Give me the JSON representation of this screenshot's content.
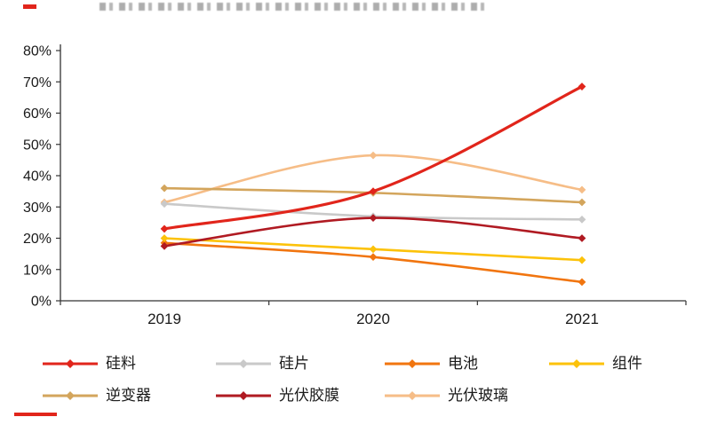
{
  "chart_data": {
    "type": "line",
    "title": "",
    "x_categories": [
      "2019",
      "2020",
      "2021"
    ],
    "ylim": [
      0,
      80
    ],
    "ytick_step": 10,
    "ytick_labels": [
      "0%",
      "10%",
      "20%",
      "30%",
      "40%",
      "50%",
      "60%",
      "70%",
      "80%"
    ],
    "grid": false,
    "legend_position": "bottom",
    "marker": "diamond",
    "series": [
      {
        "name": "硅料",
        "color": "#e1251b",
        "values": [
          23,
          35,
          68.5
        ]
      },
      {
        "name": "硅片",
        "color": "#c9c9c9",
        "values": [
          31,
          27,
          26
        ]
      },
      {
        "name": "电池",
        "color": "#f1750f",
        "values": [
          18.5,
          14,
          6
        ]
      },
      {
        "name": "组件",
        "color": "#fcc20a",
        "values": [
          20,
          16.5,
          13
        ]
      },
      {
        "name": "逆变器",
        "color": "#d3a55c",
        "values": [
          36,
          34.5,
          31.5
        ]
      },
      {
        "name": "光伏胶膜",
        "color": "#b01a22",
        "values": [
          17.5,
          26.5,
          20
        ]
      },
      {
        "name": "光伏玻璃",
        "color": "#f6bd87",
        "values": [
          31.5,
          46.5,
          35.5
        ]
      }
    ],
    "legend_rows": [
      [
        0,
        1,
        2,
        3
      ],
      [
        4,
        5,
        6
      ]
    ]
  }
}
